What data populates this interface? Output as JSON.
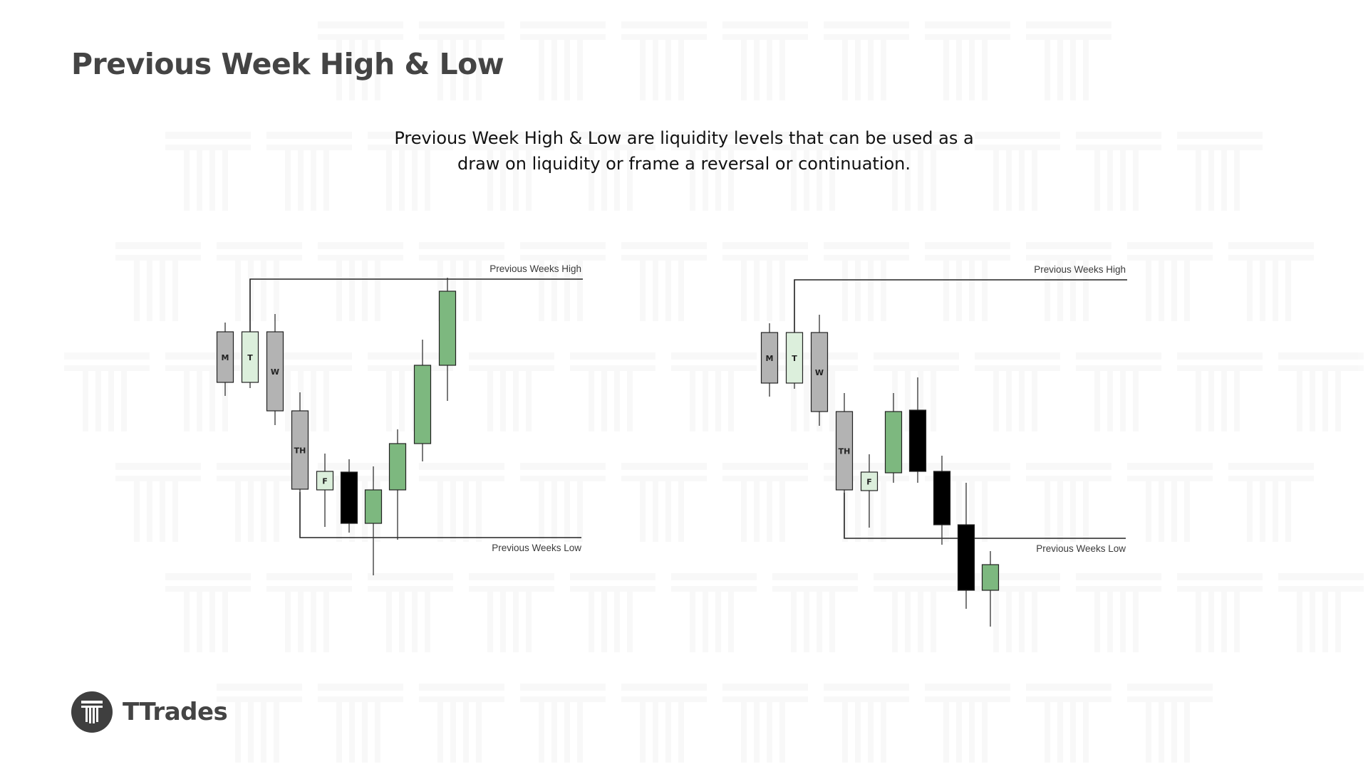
{
  "header": {
    "title": "Previous Week High & Low"
  },
  "description": {
    "line1": "Previous Week High & Low are liquidity levels that can be used as a",
    "line2": "draw on liquidity or frame a reversal or continuation."
  },
  "diagrams": [
    {
      "high_label": "Previous Weeks High",
      "low_label": "Previous Weeks Low",
      "candles": [
        {
          "label": "M",
          "color": "gray"
        },
        {
          "label": "T",
          "color": "light"
        },
        {
          "label": "W",
          "color": "gray"
        },
        {
          "label": "TH",
          "color": "gray"
        },
        {
          "label": "F",
          "color": "light"
        },
        {
          "label": "",
          "color": "black"
        },
        {
          "label": "",
          "color": "green"
        },
        {
          "label": "",
          "color": "green"
        },
        {
          "label": "",
          "color": "green"
        },
        {
          "label": "",
          "color": "green"
        }
      ]
    },
    {
      "high_label": "Previous Weeks High",
      "low_label": "Previous Weeks Low",
      "candles": [
        {
          "label": "M",
          "color": "gray"
        },
        {
          "label": "T",
          "color": "light"
        },
        {
          "label": "W",
          "color": "gray"
        },
        {
          "label": "TH",
          "color": "gray"
        },
        {
          "label": "F",
          "color": "light"
        },
        {
          "label": "",
          "color": "green"
        },
        {
          "label": "",
          "color": "black"
        },
        {
          "label": "",
          "color": "black"
        },
        {
          "label": "",
          "color": "black"
        },
        {
          "label": "",
          "color": "green"
        }
      ]
    }
  ],
  "colors": {
    "gray": "#b3b3b3",
    "light": "#dcefdc",
    "green": "#7db87f",
    "black": "#000000",
    "line": "#222222",
    "text": "#3a3a3a"
  },
  "logo": {
    "icon": "ttrades-logo-icon",
    "name": "TTrades"
  }
}
